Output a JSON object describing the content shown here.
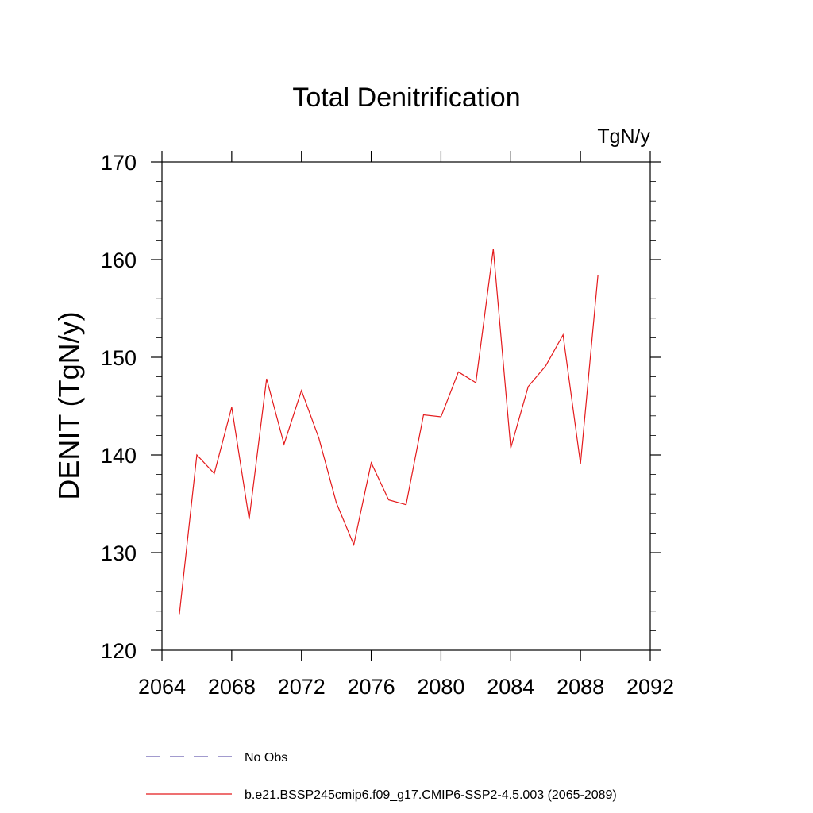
{
  "chart_data": {
    "type": "line",
    "title": "Total Denitrification",
    "units_label": "TgN/y",
    "ylabel": "DENIT  (TgN/y)",
    "xlabel": "",
    "xlim": [
      2064,
      2092
    ],
    "ylim": [
      120,
      170
    ],
    "x_ticks": [
      2064,
      2068,
      2072,
      2076,
      2080,
      2084,
      2088,
      2092
    ],
    "y_ticks": [
      120,
      130,
      140,
      150,
      160,
      170
    ],
    "grid": false,
    "legend_position": "bottom",
    "series": [
      {
        "name": "No Obs",
        "color": "#6b5fb0",
        "style": "dashed",
        "x": [],
        "y": []
      },
      {
        "name": "b.e21.BSSP245cmip6.f09_g17.CMIP6-SSP2-4.5.003 (2065-2089)",
        "color": "#e41a1c",
        "style": "solid",
        "x": [
          2065,
          2066,
          2067,
          2068,
          2069,
          2070,
          2071,
          2072,
          2073,
          2074,
          2075,
          2076,
          2077,
          2078,
          2079,
          2080,
          2081,
          2082,
          2083,
          2084,
          2085,
          2086,
          2087,
          2088,
          2089
        ],
        "y": [
          123.7,
          140.0,
          138.1,
          144.9,
          133.4,
          147.8,
          141.1,
          146.6,
          141.7,
          135.1,
          130.8,
          139.2,
          135.4,
          134.9,
          144.1,
          143.9,
          148.5,
          147.4,
          161.1,
          140.7,
          147.0,
          149.1,
          152.3,
          139.1,
          158.4
        ]
      }
    ]
  }
}
